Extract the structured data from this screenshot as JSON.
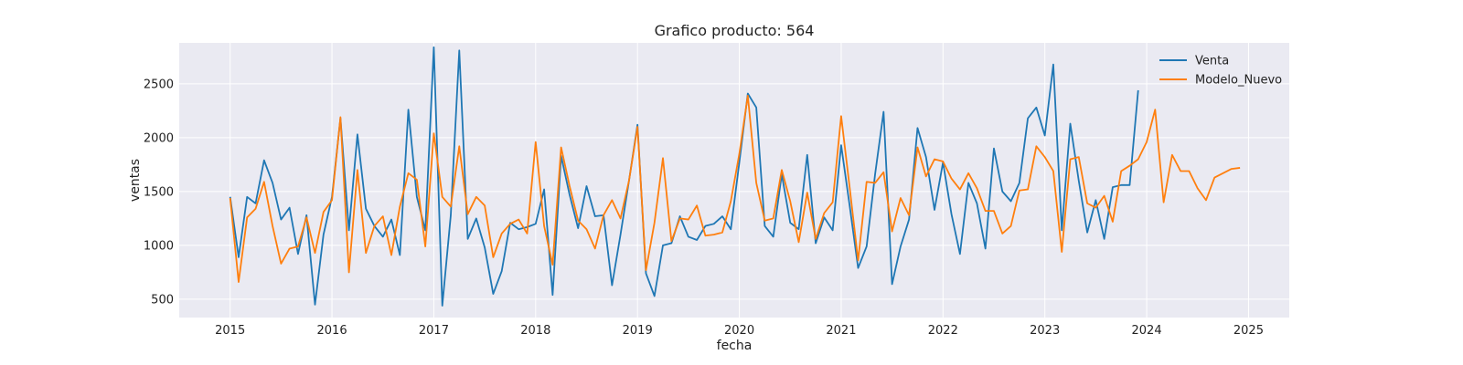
{
  "chart_data": {
    "type": "line",
    "title": "Grafico producto: 564",
    "xlabel": "fecha",
    "ylabel": "ventas",
    "xlim": [
      2014.5,
      2025.4
    ],
    "ylim": [
      330,
      2880
    ],
    "xticks": [
      2015,
      2016,
      2017,
      2018,
      2019,
      2020,
      2021,
      2022,
      2023,
      2024,
      2025
    ],
    "yticks": [
      500,
      1000,
      1500,
      2000,
      2500
    ],
    "grid": true,
    "legend_position": "top-right",
    "plot_background": "#eaeaf2",
    "series": [
      {
        "name": "Venta",
        "color": "#1f77b4",
        "x_start": 2015.0,
        "x_step": 0.08333,
        "values": [
          1450,
          890,
          1450,
          1390,
          1790,
          1580,
          1240,
          1350,
          920,
          1280,
          450,
          1100,
          1450,
          2180,
          1140,
          2030,
          1340,
          1180,
          1080,
          1240,
          910,
          2260,
          1450,
          1140,
          2840,
          440,
          1280,
          2810,
          1060,
          1250,
          980,
          550,
          760,
          1210,
          1150,
          1170,
          1200,
          1520,
          540,
          1830,
          1470,
          1160,
          1550,
          1270,
          1280,
          630,
          1100,
          1600,
          2120,
          740,
          530,
          1000,
          1020,
          1270,
          1080,
          1050,
          1180,
          1200,
          1270,
          1150,
          1770,
          2410,
          2280,
          1180,
          1080,
          1660,
          1210,
          1150,
          1840,
          1020,
          1260,
          1140,
          1930,
          1370,
          790,
          990,
          1660,
          2240,
          640,
          990,
          1240,
          2090,
          1820,
          1330,
          1770,
          1290,
          920,
          1580,
          1390,
          970,
          1900,
          1500,
          1410,
          1580,
          2180,
          2280,
          2020,
          2680,
          1140,
          2130,
          1600,
          1120,
          1420,
          1060,
          1540,
          1560,
          1560,
          2440
        ]
      },
      {
        "name": "Modelo_Nuevo",
        "color": "#ff7f0e",
        "x_start": 2015.0,
        "x_step": 0.08333,
        "values": [
          1440,
          660,
          1260,
          1340,
          1590,
          1180,
          830,
          970,
          990,
          1260,
          930,
          1310,
          1420,
          2190,
          750,
          1700,
          930,
          1180,
          1270,
          910,
          1360,
          1670,
          1610,
          990,
          2040,
          1450,
          1360,
          1920,
          1290,
          1450,
          1370,
          890,
          1110,
          1200,
          1240,
          1110,
          1960,
          1180,
          820,
          1910,
          1550,
          1230,
          1150,
          970,
          1280,
          1420,
          1250,
          1600,
          2100,
          770,
          1210,
          1810,
          1040,
          1250,
          1240,
          1370,
          1090,
          1100,
          1120,
          1410,
          1850,
          2390,
          1580,
          1230,
          1250,
          1700,
          1410,
          1030,
          1490,
          1060,
          1300,
          1400,
          2200,
          1540,
          860,
          1590,
          1580,
          1680,
          1130,
          1440,
          1280,
          1910,
          1640,
          1800,
          1780,
          1620,
          1520,
          1670,
          1530,
          1320,
          1320,
          1110,
          1180,
          1510,
          1520,
          1920,
          1820,
          1690,
          940,
          1800,
          1820,
          1390,
          1350,
          1460,
          1220,
          1690,
          1740,
          1800,
          1960,
          2260,
          1400,
          1840,
          1690,
          1690,
          1530,
          1420,
          1630,
          1670,
          1710,
          1720
        ]
      }
    ]
  }
}
